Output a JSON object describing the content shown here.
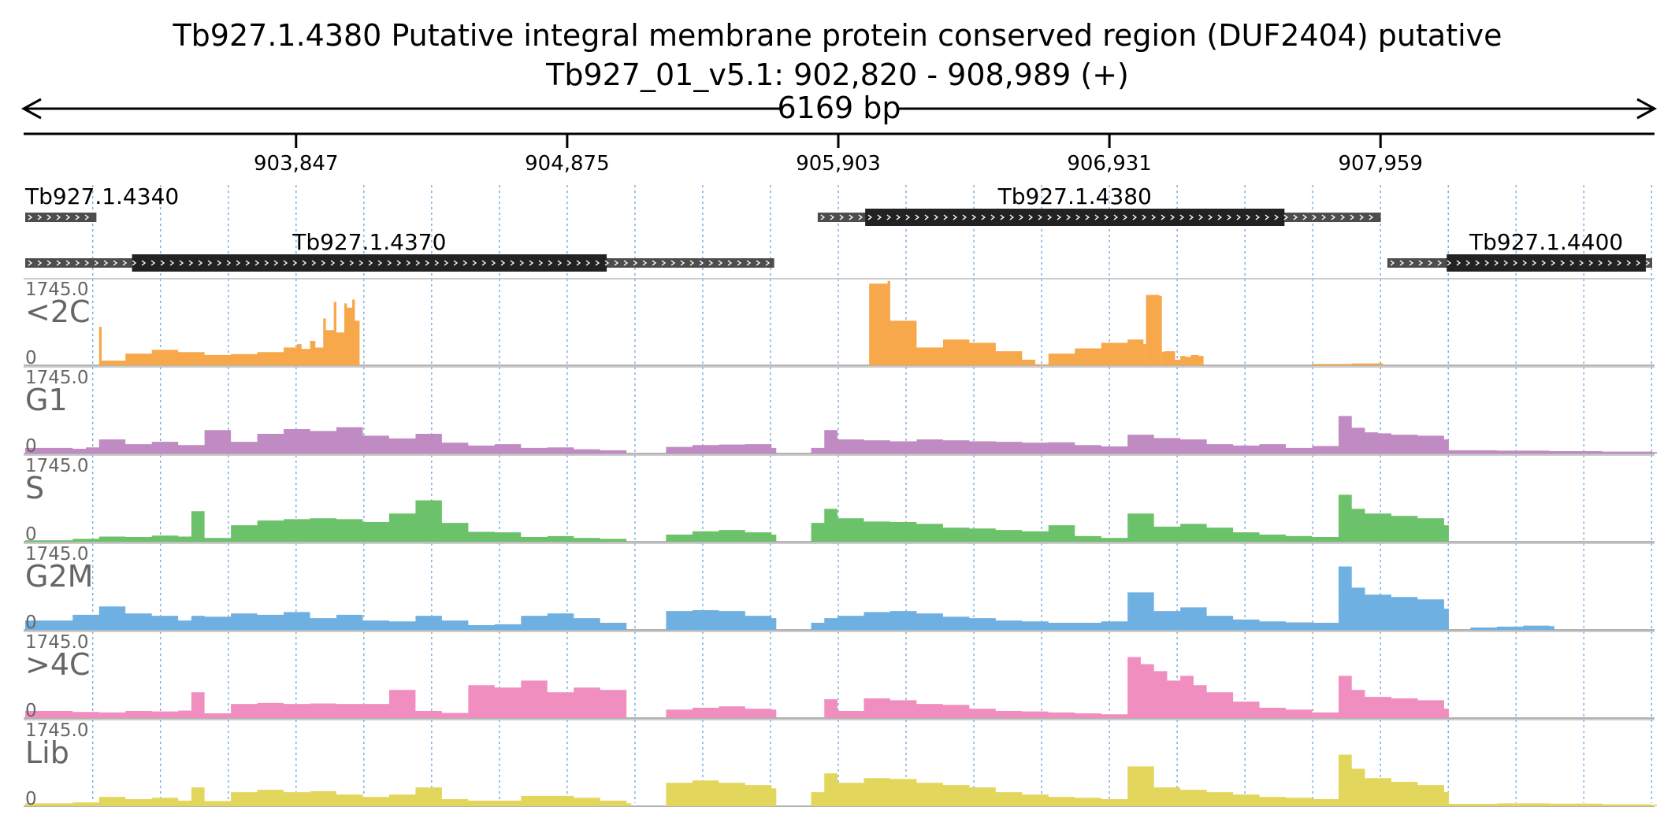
{
  "chart_data": {
    "type": "area",
    "title": "Tb927.1.4380  Putative integral membrane protein conserved region (DUF2404)  putative",
    "subtitle": "Tb927_01_v5.1: 902,820 - 908,989 (+)",
    "span_label": "6169 bp",
    "region": {
      "chrom": "Tb927_01_v5.1",
      "start": 902820,
      "end": 908989,
      "strand": "+"
    },
    "xlim": [
      902820,
      908989
    ],
    "x_ticks": [
      903847,
      904875,
      905903,
      906931,
      907959
    ],
    "x_tick_labels": [
      "903,847",
      "904,875",
      "905,903",
      "906,931",
      "907,959"
    ],
    "genes": [
      {
        "name": "Tb927.1.4340",
        "row": 0,
        "utr_start": 902820,
        "utr_end": 903090,
        "cds": null
      },
      {
        "name": "Tb927.1.4370",
        "row": 1,
        "utr_start": 902820,
        "utr_end": 905660,
        "cds": [
          903225,
          905025
        ]
      },
      {
        "name": "Tb927.1.4380",
        "row": 0,
        "utr_start": 905825,
        "utr_end": 907960,
        "cds": [
          906005,
          907595
        ]
      },
      {
        "name": "Tb927.1.4400",
        "row": 1,
        "utr_start": 907985,
        "utr_end": 908989,
        "cds": [
          908210,
          908965
        ]
      }
    ],
    "colors": {
      "gene_utr": "#4d4d4d",
      "gene_cds": "#222222",
      "grid": "#7fb0e0",
      "separator": "#bbbbbb"
    },
    "tracks": [
      {
        "name": "<2C",
        "ymax_label": "1745.0",
        "ymin_label": "0",
        "ylim": [
          0,
          1745
        ],
        "color": "#f7a84a",
        "segments": [
          {
            "x": [
              903050,
              903100,
              903110,
              903200,
              903300,
              903400,
              903500,
              903600,
              903700,
              903800,
              903850
            ],
            "y": [
              0,
              820,
              100,
              250,
              330,
              280,
              220,
              240,
              280,
              380,
              450
            ]
          },
          {
            "x": [
              903850,
              903900,
              903920,
              903950,
              903960,
              903990,
              904000,
              904030,
              904040,
              904060,
              904070
            ],
            "y": [
              350,
              520,
              380,
              1000,
              750,
              1350,
              700,
              1320,
              1230,
              1400,
              950
            ]
          },
          {
            "x": [
              906020,
              906090,
              906100,
              906200,
              906300,
              906400,
              906500,
              906600,
              906650
            ],
            "y": [
              1740,
              1800,
              950,
              380,
              550,
              480,
              300,
              120,
              20
            ]
          },
          {
            "x": [
              906650,
              906700,
              906800,
              906900,
              907000,
              907060,
              907070
            ],
            "y": [
              20,
              250,
              360,
              480,
              550,
              450,
              0
            ]
          },
          {
            "x": [
              907070,
              907080,
              907120,
              907130
            ],
            "y": [
              1500,
              1500,
              1480,
              0
            ]
          },
          {
            "x": [
              907130,
              907140,
              907180,
              907200,
              907220,
              907240,
              907270
            ],
            "y": [
              290,
              300,
              120,
              200,
              180,
              220,
              200
            ]
          },
          {
            "x": [
              907700,
              907850,
              907950
            ],
            "y": [
              30,
              40,
              45
            ]
          }
        ]
      },
      {
        "name": "G1",
        "ymax_label": "1745.0",
        "ymin_label": "0",
        "ylim": [
          0,
          1745
        ],
        "color": "#c08bc3",
        "segments": [
          {
            "x": [
              902820,
              903000,
              903050,
              903100,
              903200,
              903300,
              903400,
              903500,
              903600,
              903700,
              903800,
              903900,
              904000,
              904100,
              904200,
              904300,
              904400,
              904500,
              904600,
              904700,
              904800,
              904900,
              905000,
              905100
            ],
            "y": [
              120,
              100,
              130,
              300,
              200,
              250,
              180,
              500,
              250,
              420,
              520,
              480,
              560,
              380,
              320,
              420,
              230,
              170,
              200,
              120,
              130,
              90,
              70,
              0
            ]
          },
          {
            "x": [
              905250,
              905350,
              905450,
              905550,
              905650
            ],
            "y": [
              140,
              180,
              190,
              200,
              120
            ]
          },
          {
            "x": [
              905800,
              905850,
              905900,
              906000,
              906100,
              906200,
              906300,
              906400,
              906500,
              906600,
              906700,
              906800,
              906900,
              907000,
              907100,
              907200,
              907300,
              907400,
              907500,
              907600,
              907700,
              907800,
              907850,
              907900,
              907950,
              908000,
              908100,
              908200
            ],
            "y": [
              120,
              500,
              300,
              280,
              260,
              300,
              280,
              260,
              250,
              230,
              240,
              180,
              150,
              400,
              330,
              300,
              200,
              170,
              200,
              120,
              160,
              800,
              550,
              450,
              430,
              400,
              380,
              300
            ]
          },
          {
            "x": [
              908200,
              908400,
              908600,
              908800,
              908989
            ],
            "y": [
              70,
              60,
              50,
              40,
              30
            ]
          }
        ]
      },
      {
        "name": "S",
        "ymax_label": "1745.0",
        "ymin_label": "0",
        "ylim": [
          0,
          1745
        ],
        "color": "#6cc26b",
        "segments": [
          {
            "x": [
              902820,
              903000,
              903100,
              903200,
              903300,
              903400,
              903450,
              903500,
              903600,
              903700,
              903800,
              903900,
              904000,
              904100,
              904200,
              904300,
              904400,
              904500,
              904600,
              904700,
              904800,
              904900,
              905000,
              905100
            ],
            "y": [
              30,
              60,
              110,
              100,
              130,
              110,
              650,
              80,
              350,
              450,
              480,
              500,
              480,
              420,
              600,
              880,
              400,
              210,
              200,
              100,
              120,
              80,
              60,
              0
            ]
          },
          {
            "x": [
              905250,
              905350,
              905450,
              905550,
              905650
            ],
            "y": [
              150,
              220,
              250,
              200,
              150
            ]
          },
          {
            "x": [
              905800,
              905850,
              905900,
              906000,
              906100,
              906200,
              906300,
              906400,
              906500,
              906600,
              906700,
              906800,
              906900,
              907000,
              907100,
              907200,
              907300,
              907400,
              907500,
              907600,
              907700,
              907800,
              907850,
              907900,
              908000,
              908100,
              908200
            ],
            "y": [
              400,
              700,
              500,
              430,
              420,
              380,
              300,
              280,
              250,
              220,
              350,
              120,
              80,
              600,
              320,
              380,
              300,
              200,
              150,
              120,
              100,
              1000,
              700,
              600,
              550,
              500,
              350
            ]
          }
        ]
      },
      {
        "name": "G2M",
        "ymax_label": "1745.0",
        "ymin_label": "0",
        "ylim": [
          0,
          1745
        ],
        "color": "#6fb0e2",
        "segments": [
          {
            "x": [
              902820,
              903000,
              903100,
              903200,
              903300,
              903400,
              903450,
              903500,
              903600,
              903700,
              903800,
              903900,
              904000,
              904100,
              904200,
              904300,
              904400,
              904500,
              904600,
              904700,
              904800,
              904900,
              905000,
              905100
            ],
            "y": [
              200,
              320,
              500,
              350,
              300,
              200,
              300,
              280,
              350,
              320,
              380,
              250,
              320,
              200,
              180,
              300,
              200,
              100,
              120,
              300,
              350,
              250,
              150,
              0
            ]
          },
          {
            "x": [
              905250,
              905350,
              905450,
              905550,
              905650
            ],
            "y": [
              400,
              420,
              400,
              300,
              250
            ]
          },
          {
            "x": [
              905800,
              905850,
              905900,
              906000,
              906100,
              906200,
              906300,
              906400,
              906500,
              906600,
              906700,
              906800,
              906900,
              907000,
              907100,
              907200,
              907300,
              907400,
              907500,
              907600,
              907700,
              907800,
              907850,
              907900,
              908000,
              908100,
              908200
            ],
            "y": [
              150,
              250,
              300,
              380,
              400,
              350,
              280,
              250,
              200,
              180,
              150,
              150,
              180,
              800,
              400,
              480,
              300,
              220,
              180,
              160,
              150,
              1350,
              900,
              750,
              700,
              650,
              450
            ]
          },
          {
            "x": [
              908300,
              908400,
              908500,
              908600
            ],
            "y": [
              50,
              70,
              90,
              80
            ]
          }
        ]
      },
      {
        "name": ">4C",
        "ymax_label": "1745.0",
        "ymin_label": "0",
        "ylim": [
          0,
          1745
        ],
        "color": "#f08fbf",
        "segments": [
          {
            "x": [
              902820,
              903000,
              903100,
              903200,
              903300,
              903400,
              903450,
              903500,
              903600,
              903700,
              903800,
              903900,
              904000,
              904100,
              904200,
              904300,
              904400,
              904500,
              904600,
              904700,
              904800,
              904900,
              905000,
              905100
            ],
            "y": [
              150,
              130,
              120,
              150,
              140,
              160,
              550,
              100,
              300,
              320,
              300,
              310,
              300,
              300,
              600,
              150,
              110,
              700,
              650,
              800,
              550,
              650,
              600,
              0
            ]
          },
          {
            "x": [
              905250,
              905350,
              905450,
              905550,
              905650
            ],
            "y": [
              180,
              220,
              250,
              200,
              180
            ]
          },
          {
            "x": [
              905850,
              905900,
              906000,
              906100,
              906200,
              906300,
              906400,
              906500,
              906600,
              906700,
              906800,
              906900,
              907000,
              907050,
              907100,
              907150,
              907200,
              907250,
              907300,
              907400,
              907500,
              907600,
              907700,
              907800,
              907850,
              907900,
              908000,
              908100,
              908200
            ],
            "y": [
              400,
              150,
              420,
              380,
              300,
              280,
              200,
              150,
              140,
              120,
              100,
              80,
              1300,
              1150,
              1000,
              800,
              900,
              700,
              550,
              350,
              220,
              180,
              120,
              900,
              600,
              450,
              420,
              380,
              200
            ]
          }
        ]
      },
      {
        "name": "Lib",
        "ymax_label": "1745.0",
        "ymin_label": "0",
        "ylim": [
          0,
          1745
        ],
        "color": "#e3d65c",
        "segments": [
          {
            "x": [
              902820,
              903000,
              903100,
              903200,
              903300,
              903400,
              903450,
              903500,
              903600,
              903700,
              903800,
              903900,
              904000,
              904100,
              904200,
              904300,
              904400,
              904500,
              904600,
              904700,
              904800,
              904900,
              905000,
              905100
            ],
            "y": [
              60,
              80,
              200,
              150,
              180,
              120,
              400,
              110,
              300,
              350,
              300,
              320,
              250,
              200,
              250,
              400,
              150,
              120,
              120,
              220,
              220,
              180,
              120,
              60
            ]
          },
          {
            "x": [
              905250,
              905350,
              905450,
              905550,
              905650
            ],
            "y": [
              500,
              550,
              500,
              450,
              380
            ]
          },
          {
            "x": [
              905800,
              905850,
              905900,
              906000,
              906100,
              906200,
              906300,
              906400,
              906500,
              906600,
              906700,
              906800,
              906900,
              907000,
              907100,
              907200,
              907300,
              907400,
              907500,
              907600,
              907700,
              907800,
              907850,
              907900,
              908000,
              908100,
              908200
            ],
            "y": [
              300,
              700,
              500,
              600,
              580,
              500,
              450,
              400,
              300,
              250,
              200,
              180,
              150,
              850,
              400,
              350,
              300,
              250,
              200,
              180,
              150,
              1100,
              800,
              600,
              520,
              450,
              300
            ]
          },
          {
            "x": [
              908200,
              908400,
              908600,
              908800,
              908989
            ],
            "y": [
              50,
              60,
              55,
              40,
              30
            ]
          }
        ]
      }
    ]
  }
}
